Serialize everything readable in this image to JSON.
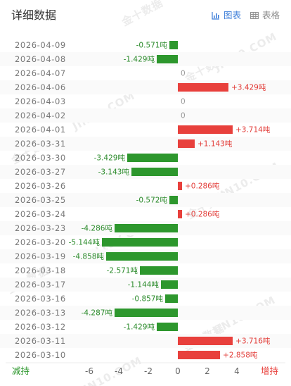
{
  "header": {
    "title": "详细数据",
    "view_toggle": {
      "chart": {
        "label": "图表",
        "active": true,
        "icon": "bar-chart-icon"
      },
      "table": {
        "label": "表格",
        "active": false,
        "icon": "table-icon"
      }
    }
  },
  "colors": {
    "increase": "#e8403c",
    "decrease": "#2d972d",
    "increase_label": "#e23b37",
    "decrease_label": "#2a8a2a",
    "zero_label": "#999999",
    "active_toggle": "#3f7fd9",
    "inactive_toggle": "#8c8c8c"
  },
  "chart_data": {
    "type": "bar",
    "orientation": "horizontal",
    "categories": [
      "2026-04-09",
      "2026-04-08",
      "2026-04-07",
      "2026-04-06",
      "2026-04-03",
      "2026-04-02",
      "2026-04-01",
      "2026-03-31",
      "2026-03-30",
      "2026-03-27",
      "2026-03-26",
      "2026-03-25",
      "2026-03-24",
      "2026-03-23",
      "2026-03-20",
      "2026-03-19",
      "2026-03-18",
      "2026-03-17",
      "2026-03-16",
      "2026-03-13",
      "2026-03-12",
      "2026-03-11",
      "2026-03-10"
    ],
    "values": [
      -0.571,
      -1.429,
      0,
      3.429,
      0,
      0,
      3.714,
      1.143,
      -3.429,
      -3.143,
      0.286,
      -0.572,
      0.286,
      -4.286,
      -5.144,
      -4.858,
      -2.571,
      -1.144,
      -0.857,
      -4.287,
      -1.429,
      3.716,
      2.858
    ],
    "data_labels": [
      "-0.571吨",
      "-1.429吨",
      "0",
      "+3.429吨",
      "0",
      "0",
      "+3.714吨",
      "+1.143吨",
      "-3.429吨",
      "-3.143吨",
      "+0.286吨",
      "-0.572吨",
      "+0.286吨",
      "-4.286吨",
      "-5.144吨",
      "-4.858吨",
      "-2.571吨",
      "-1.144吨",
      "-0.857吨",
      "-4.287吨",
      "-1.429吨",
      "+3.716吨",
      "+2.858吨"
    ],
    "xlim": [
      -6,
      6
    ],
    "xticks": [
      -6,
      -4,
      -2,
      0,
      2,
      4
    ],
    "negative_label": "减持",
    "positive_label": "增持",
    "grid": false
  },
  "watermark": {
    "latin": "JIN10.COM",
    "cjk": "金十数据"
  }
}
